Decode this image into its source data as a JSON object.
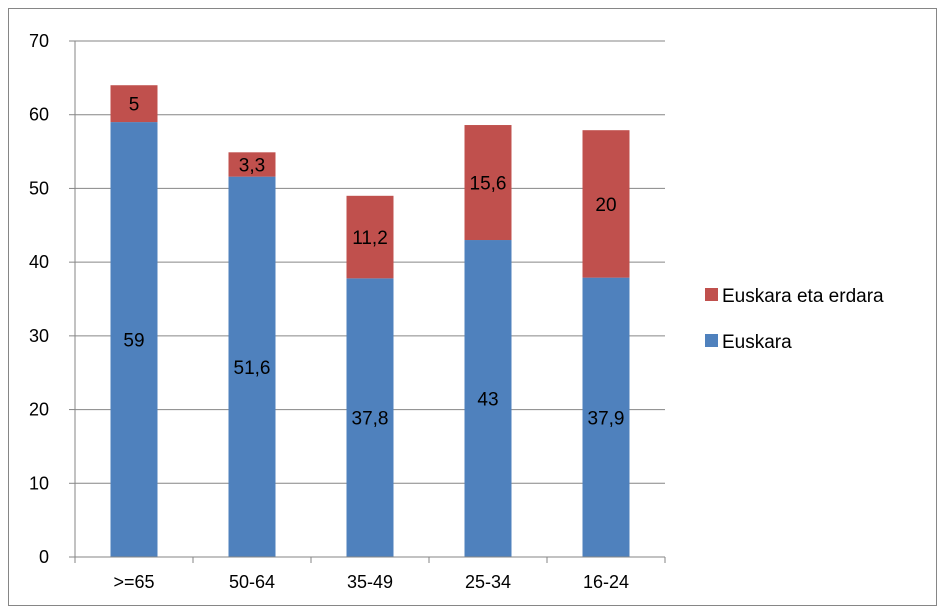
{
  "chart_data": {
    "type": "bar",
    "stacked": true,
    "categories": [
      ">=65",
      "50-64",
      "35-49",
      "25-34",
      "16-24"
    ],
    "series": [
      {
        "name": "Euskara",
        "values": [
          59,
          51.6,
          37.8,
          43,
          37.9
        ],
        "labels": [
          "59",
          "51,6",
          "37,8",
          "43",
          "37,9"
        ],
        "color": "#4F81BD"
      },
      {
        "name": "Euskara eta erdara",
        "values": [
          5,
          3.3,
          11.2,
          15.6,
          20
        ],
        "labels": [
          "5",
          "3,3",
          "11,2",
          "15,6",
          "20"
        ],
        "color": "#C0504D"
      }
    ],
    "ylim": [
      0,
      70
    ],
    "yticks": [
      0,
      10,
      20,
      30,
      40,
      50,
      60,
      70
    ],
    "grid": true,
    "legend": "right",
    "legend_order": [
      "Euskara eta erdara",
      "Euskara"
    ],
    "title": "",
    "xlabel": "",
    "ylabel": ""
  },
  "colors": {
    "grid": "#868686",
    "axis": "#868686"
  }
}
